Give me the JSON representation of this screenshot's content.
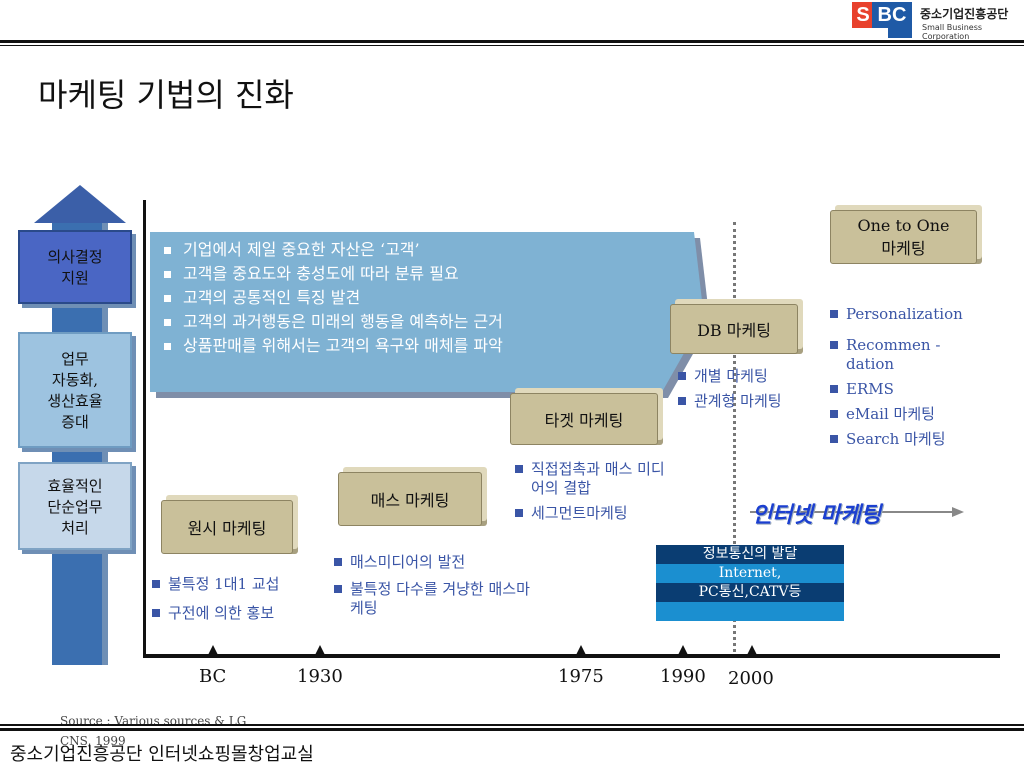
{
  "header": {
    "logo_kr": "중소기업진흥공단",
    "logo_en": "Small Business Corporation",
    "logo_s": "S",
    "logo_bc": "BC"
  },
  "title": "마케팅 기법의 진화",
  "left_column": [
    {
      "label_lines": [
        "의사결정",
        "지원"
      ]
    },
    {
      "label_lines": [
        "업무",
        "자동화,",
        "생산효율",
        "증대"
      ]
    },
    {
      "label_lines": [
        "효율적인",
        "단순업무",
        "처리"
      ]
    }
  ],
  "banner": {
    "bullets": [
      "기업에서 제일 중요한 자산은 ‘고객’",
      "고객을 중요도와 충성도에 따라 분류 필요",
      "고객의 공통적인 특징 발견",
      "고객의 과거행동은 미래의 행동을 예측하는 근거",
      "상품판매를 위해서는 고객의 욕구와 매체를 파악"
    ]
  },
  "stages": [
    {
      "label": "원시 마케팅",
      "bullets": [
        "불특정 1대1 교섭",
        "구전에 의한 홍보"
      ]
    },
    {
      "label": "매스 마케팅",
      "bullets": [
        "매스미디어의 발전",
        "불특정 다수를 겨냥한 매스마케팅"
      ]
    },
    {
      "label": "타겟 마케팅",
      "bullets": [
        "직접접촉과 매스 미디어의 결합",
        "세그먼트마케팅"
      ]
    },
    {
      "label": "DB 마케팅",
      "bullets": [
        "개별 마케팅",
        "관계형 마케팅"
      ]
    },
    {
      "label_lines": [
        "One to One",
        "마케팅"
      ],
      "bullets": [
        "Personalization",
        "Recommen -dation",
        "ERMS",
        "eMail 마케팅",
        "Search 마케팅"
      ]
    }
  ],
  "internet_marketing": "인터넷 마케팅",
  "info_box": [
    "정보통신의 발달",
    "Internet,",
    "PC통신,CATV등"
  ],
  "timeline": [
    "BC",
    "1930",
    "1975",
    "1990",
    "2000"
  ],
  "source": "Source : Various sources & LG CNS, 1999",
  "footer": "중소기업진흥공단 인터넷쇼핑몰창업교실",
  "colors": {
    "banner": "#7fb2d3",
    "cube": "#c9c09a",
    "bullet_text": "#3a55a6",
    "left_arrow": "#3b6fb0"
  }
}
